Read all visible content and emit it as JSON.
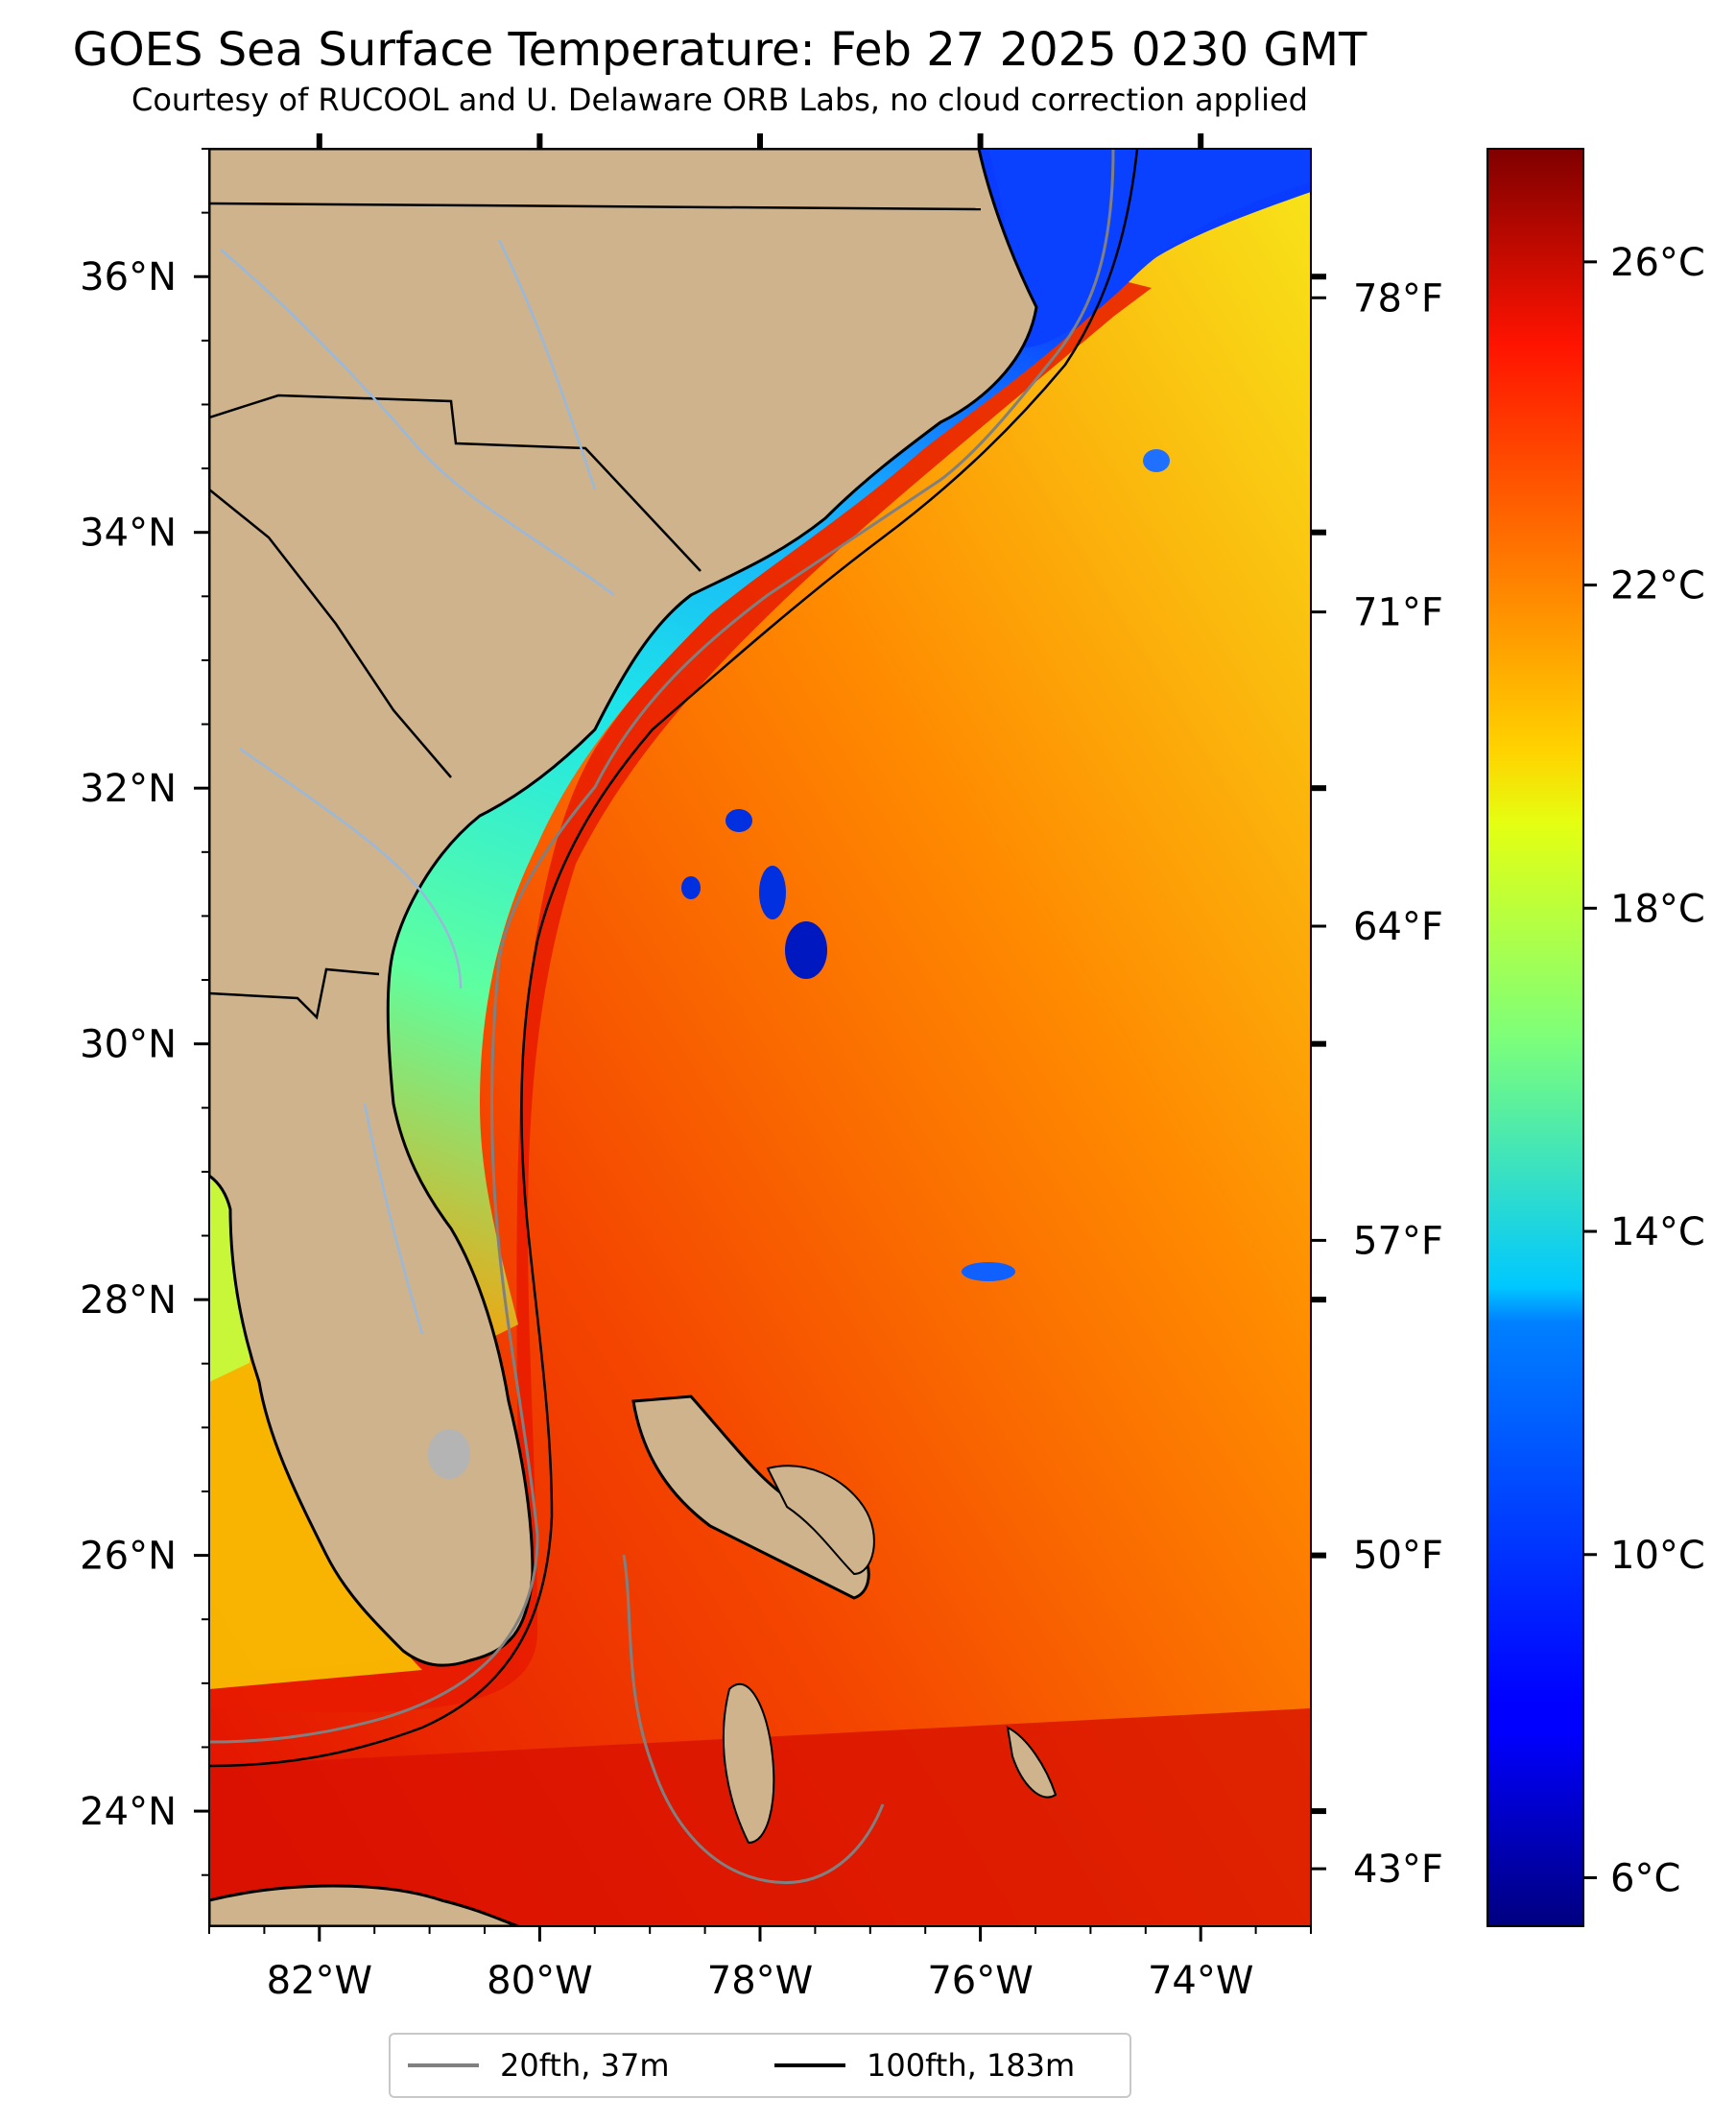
{
  "title": "GOES Sea Surface Temperature: Feb 27 2025 0230 GMT",
  "subtitle": "Courtesy of RUCOOL and U. Delaware ORB Labs, no cloud correction applied",
  "map": {
    "lon_range": [
      -83,
      -73
    ],
    "lat_range": [
      23.1,
      37.0
    ],
    "lon_ticks": [
      {
        "value": -82,
        "label": "82°W"
      },
      {
        "value": -80,
        "label": "80°W"
      },
      {
        "value": -78,
        "label": "78°W"
      },
      {
        "value": -76,
        "label": "76°W"
      },
      {
        "value": -74,
        "label": "74°W"
      }
    ],
    "lat_ticks": [
      {
        "value": 24,
        "label": "24°N"
      },
      {
        "value": 26,
        "label": "26°N"
      },
      {
        "value": 28,
        "label": "28°N"
      },
      {
        "value": 30,
        "label": "30°N"
      },
      {
        "value": 32,
        "label": "32°N"
      },
      {
        "value": 34,
        "label": "34°N"
      },
      {
        "value": 36,
        "label": "36°N"
      }
    ],
    "fahrenheit_ticks": [
      {
        "value": 78,
        "label": "78°F"
      },
      {
        "value": 71,
        "label": "71°F"
      },
      {
        "value": 64,
        "label": "64°F"
      },
      {
        "value": 57,
        "label": "57°F"
      },
      {
        "value": 50,
        "label": "50°F"
      },
      {
        "value": 43,
        "label": "43°F"
      }
    ],
    "colors": {
      "land": "#cfb38c",
      "coast": "#000000",
      "rivers": "#9ab8da",
      "lake": "#b4b4b4"
    }
  },
  "colorbar": {
    "range_c": [
      5.4,
      27.4
    ],
    "ticks": [
      {
        "value": 26,
        "label": "26°C"
      },
      {
        "value": 22,
        "label": "22°C"
      },
      {
        "value": 18,
        "label": "18°C"
      },
      {
        "value": 14,
        "label": "14°C"
      },
      {
        "value": 10,
        "label": "10°C"
      },
      {
        "value": 6,
        "label": "6°C"
      }
    ],
    "colormap": "jet"
  },
  "legend": {
    "items": [
      {
        "label": "20fth, 37m",
        "color": "#808080"
      },
      {
        "label": "100fth, 183m",
        "color": "#000000"
      }
    ]
  }
}
